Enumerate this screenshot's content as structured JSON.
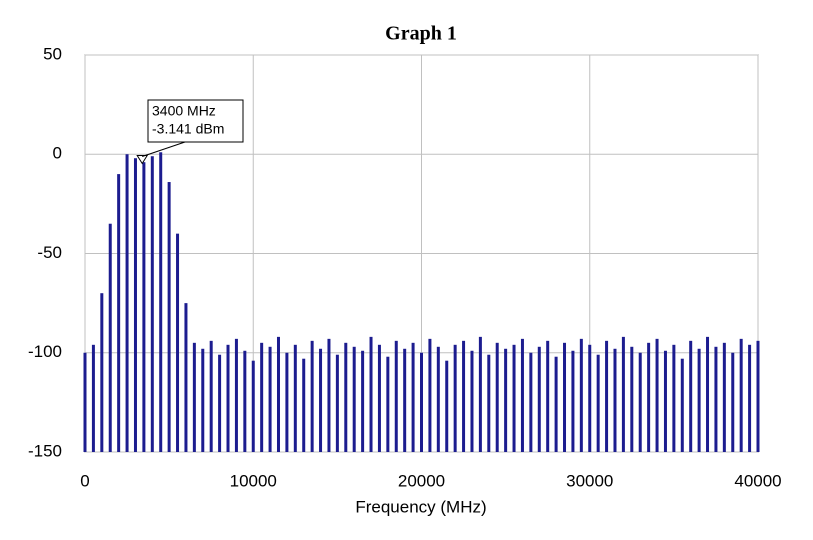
{
  "chart_data": {
    "type": "bar",
    "title": "Graph 1",
    "xlabel": "Frequency (MHz)",
    "x": [
      0,
      500,
      1000,
      1500,
      2000,
      2500,
      3000,
      3500,
      4000,
      4500,
      5000,
      5500,
      6000,
      6500,
      7000,
      7500,
      8000,
      8500,
      9000,
      9500,
      10000,
      10500,
      11000,
      11500,
      12000,
      12500,
      13000,
      13500,
      14000,
      14500,
      15000,
      15500,
      16000,
      16500,
      17000,
      17500,
      18000,
      18500,
      19000,
      19500,
      20000,
      20500,
      21000,
      21500,
      22000,
      22500,
      23000,
      23500,
      24000,
      24500,
      25000,
      25500,
      26000,
      26500,
      27000,
      27500,
      28000,
      28500,
      29000,
      29500,
      30000,
      30500,
      31000,
      31500,
      32000,
      32500,
      33000,
      33500,
      34000,
      34500,
      35000,
      35500,
      36000,
      36500,
      37000,
      37500,
      38000,
      38500,
      39000,
      39500,
      40000
    ],
    "values": [
      -100,
      -96,
      -70,
      -35,
      -10,
      0,
      -2,
      -4,
      -1,
      1,
      -14,
      -40,
      -75,
      -95,
      -98,
      -94,
      -101,
      -96,
      -93,
      -99,
      -104,
      -95,
      -97,
      -92,
      -100,
      -96,
      -103,
      -94,
      -98,
      -93,
      -101,
      -95,
      -97,
      -99,
      -92,
      -96,
      -102,
      -94,
      -98,
      -95,
      -100,
      -93,
      -97,
      -104,
      -96,
      -94,
      -99,
      -92,
      -101,
      -95,
      -98,
      -96,
      -93,
      -100,
      -97,
      -94,
      -102,
      -95,
      -99,
      -93,
      -96,
      -101,
      -94,
      -98,
      -92,
      -97,
      -100,
      -95,
      -93,
      -99,
      -96,
      -103,
      -94,
      -98,
      -92,
      -97,
      -95,
      -100,
      -93,
      -96,
      -94
    ],
    "color": "#1c1c8f",
    "xlim": [
      0,
      40000
    ],
    "xticks": [
      0,
      10000,
      20000,
      30000,
      40000
    ],
    "ylim": [
      -150,
      50
    ],
    "yticks": [
      -150,
      -100,
      -50,
      0,
      50
    ],
    "grid": true,
    "annotation": {
      "text": [
        "3400 MHz",
        "-3.141 dBm"
      ],
      "x": 3400,
      "y": -3.141
    }
  }
}
